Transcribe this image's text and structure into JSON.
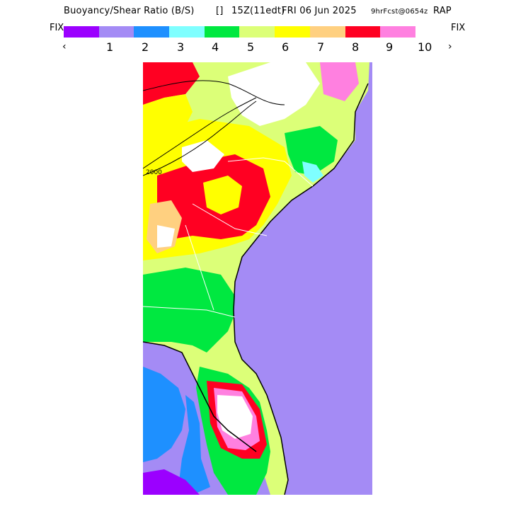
{
  "header": {
    "title_main": "Buoyancy/Shear Ratio (B/S)",
    "title_box": "[]",
    "title_time": "15Z(11edt)",
    "title_date": "FRI 06 Jun 2025",
    "title_fcst": "9hrFcst@0654z",
    "title_model": "RAP"
  },
  "legend": {
    "fix_left": "FIX",
    "fix_right": "FIX",
    "prev_label": "‹",
    "next_label": "›",
    "labels": [
      "1",
      "2",
      "3",
      "4",
      "5",
      "6",
      "7",
      "8",
      "9",
      "10"
    ],
    "colors": [
      "#9b00ff",
      "#a48bf5",
      "#1e90ff",
      "#7fffff",
      "#00e840",
      "#dcff78",
      "#ffff00",
      "#ffd080",
      "#ff0022",
      "#ff80e0"
    ]
  },
  "map": {
    "contour_labels": [
      "2000"
    ]
  }
}
